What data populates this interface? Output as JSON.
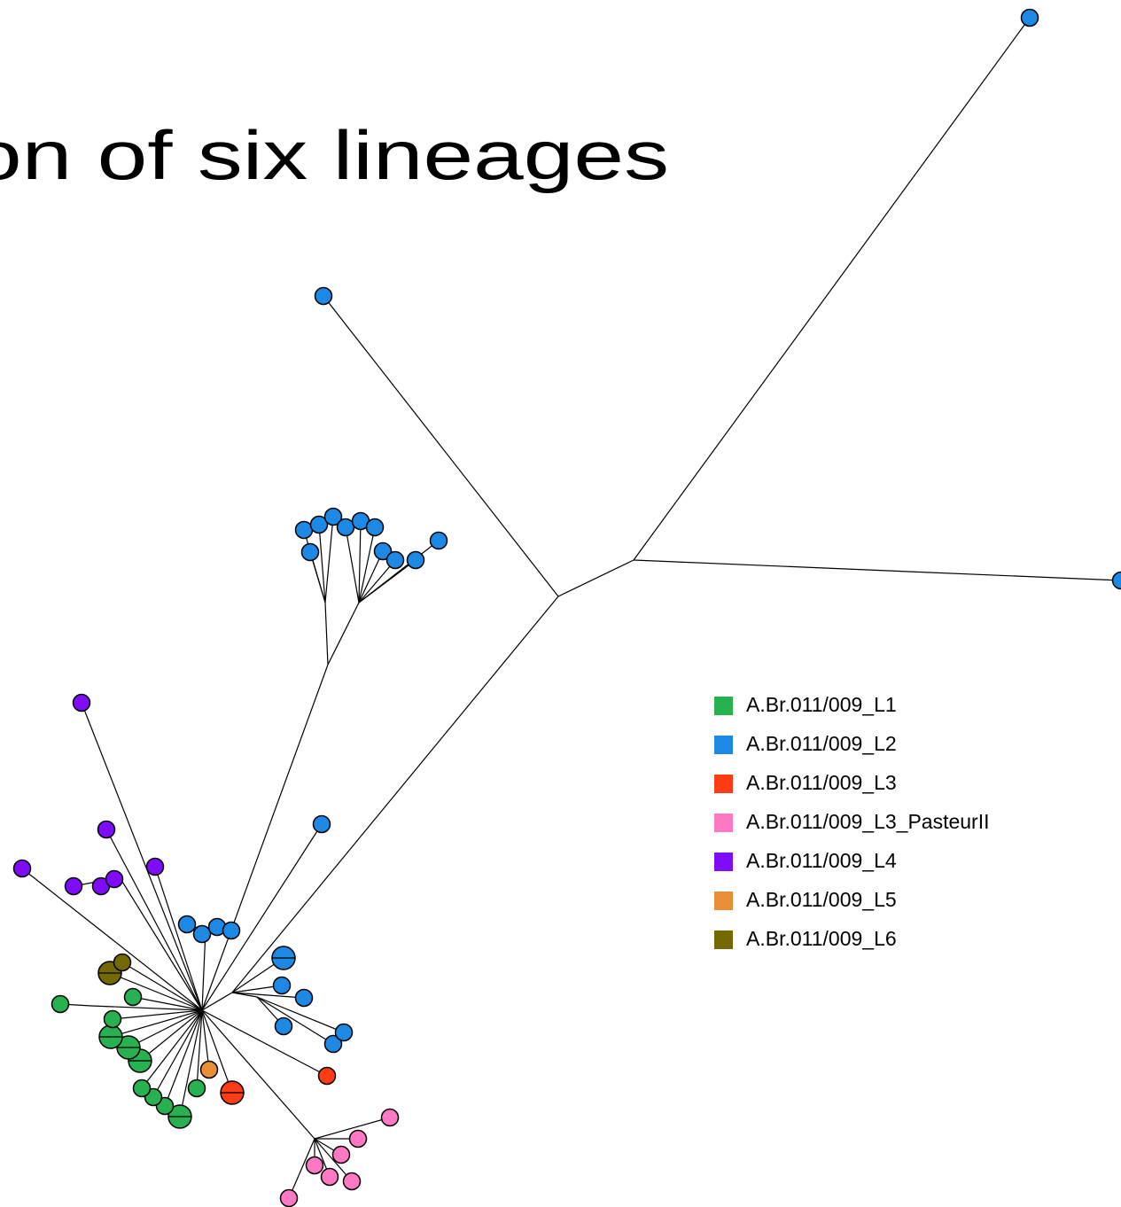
{
  "title": "on of six lineages",
  "legend": [
    {
      "label": "A.Br.011/009_L1",
      "color": "#27b150"
    },
    {
      "label": "A.Br.011/009_L2",
      "color": "#1e88e5"
    },
    {
      "label": "A.Br.011/009_L3",
      "color": "#ff3c14"
    },
    {
      "label": "A.Br.011/009_L3_PasteurII",
      "color": "#ff78c3"
    },
    {
      "label": "A.Br.011/009_L4",
      "color": "#7f0cf7"
    },
    {
      "label": "A.Br.011/009_L5",
      "color": "#e88e38"
    },
    {
      "label": "A.Br.011/009_L6",
      "color": "#746800"
    }
  ]
}
